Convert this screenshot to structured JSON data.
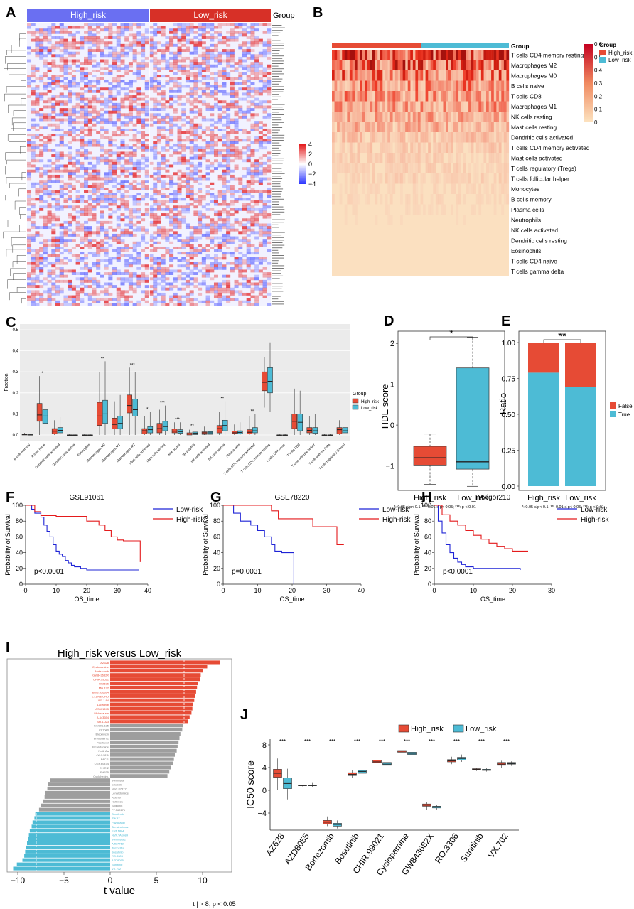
{
  "panel_letters": [
    "A",
    "B",
    "C",
    "D",
    "E",
    "F",
    "G",
    "H",
    "I",
    "J"
  ],
  "colors": {
    "high": "#e64b35",
    "low": "#4dbbd5",
    "km_high": "#e41a1c",
    "km_low": "#1f24d6",
    "heat_blue": "#2b35ff",
    "heat_red": "#e41a1c",
    "grey_bar": "#9e9e9e",
    "hatch_blue": "#6a6ff2",
    "hatch_red": "#e23b2e"
  },
  "panel_a": {
    "group_labels": [
      "High_risk",
      "Low_risk"
    ],
    "group_title": "Group",
    "legend_ticks": [
      "4",
      "2",
      "0",
      "−2",
      "−4"
    ],
    "legend_values": [
      4,
      2,
      0,
      -2,
      -4
    ]
  },
  "panel_b": {
    "group_title": "Group",
    "legend_ticks": [
      "0.6",
      "0.5",
      "0.4",
      "0.3",
      "0.2",
      "0.1",
      "0"
    ],
    "legend_values": [
      0.6,
      0.5,
      0.4,
      0.3,
      0.2,
      0.1,
      0
    ],
    "legend_groups": [
      "High_risk",
      "Low_risk"
    ],
    "rows": [
      "T cells CD4 memory resting",
      "Macrophages M2",
      "Macrophages M0",
      "B cells naive",
      "T cells CD8",
      "Macrophages M1",
      "NK cells resting",
      "Mast cells resting",
      "Dendritic cells activated",
      "T cells CD4 memory activated",
      "Mast cells activated",
      "T cells regulatory (Tregs)",
      "T cells follicular helper",
      "Monocytes",
      "B cells memory",
      "Plasma cells",
      "Neutrophils",
      "NK cells activated",
      "Dendritic cells resting",
      "Eosinophils",
      "T cells CD4 naive",
      "T cells gamma delta"
    ],
    "row_intensity": [
      0.9,
      0.75,
      0.62,
      0.55,
      0.52,
      0.48,
      0.42,
      0.38,
      0.3,
      0.25,
      0.22,
      0.2,
      0.2,
      0.15,
      0.15,
      0.12,
      0.1,
      0.08,
      0.06,
      0.04,
      0.03,
      0.02
    ]
  },
  "chart_data": [
    {
      "panel": "C",
      "type": "box",
      "ylabel": "Fraction",
      "ylim": [
        0,
        0.5
      ],
      "yticks": [
        "0.0",
        "0.1",
        "0.2",
        "0.3",
        "0.4",
        "0.5"
      ],
      "yticks_values": [
        0,
        0.1,
        0.2,
        0.3,
        0.4,
        0.5
      ],
      "legend_title": "Group",
      "legend": [
        "High_risk",
        "Low_risk"
      ],
      "categories": [
        "B cells memory",
        "B cells naive",
        "Dendritic cells activated",
        "Dendritic cells resting",
        "Eosinophils",
        "Macrophages M0",
        "Macrophages M1",
        "Macrophages M2",
        "Mast cells activated",
        "Mast cells resting",
        "Monocytes",
        "Neutrophils",
        "NK cells activated",
        "NK cells resting",
        "Plasma cells",
        "T cells CD4 memory activated",
        "T cells CD4 memory resting",
        "T cells CD4 naive",
        "T cells CD8",
        "T cells follicular helper",
        "T cells gamma delta",
        "T cells regulatory (Tregs)"
      ],
      "signif": [
        "",
        "*",
        "",
        "",
        "",
        "**",
        "",
        "***",
        "*",
        "***",
        "***",
        "**",
        "",
        "**",
        "",
        "**",
        "",
        "",
        "",
        "",
        "",
        ""
      ],
      "high": [
        [
          0,
          0,
          0.002,
          0.005,
          0.01
        ],
        [
          0,
          0.065,
          0.095,
          0.15,
          0.28
        ],
        [
          0,
          0.005,
          0.018,
          0.03,
          0.07
        ],
        [
          0,
          0,
          0,
          0,
          0.005
        ],
        [
          0,
          0,
          0,
          0,
          0.005
        ],
        [
          0,
          0.045,
          0.09,
          0.155,
          0.3
        ],
        [
          0,
          0.028,
          0.05,
          0.08,
          0.16
        ],
        [
          0,
          0.105,
          0.14,
          0.19,
          0.32
        ],
        [
          0,
          0.005,
          0.02,
          0.03,
          0.09
        ],
        [
          0,
          0.01,
          0.03,
          0.055,
          0.12
        ],
        [
          0,
          0.01,
          0.018,
          0.028,
          0.06
        ],
        [
          0,
          0,
          0.005,
          0.01,
          0.025
        ],
        [
          0,
          0.003,
          0.01,
          0.015,
          0.04
        ],
        [
          0,
          0.01,
          0.03,
          0.045,
          0.11
        ],
        [
          0,
          0.005,
          0.01,
          0.018,
          0.05
        ],
        [
          0,
          0.005,
          0.013,
          0.025,
          0.09
        ],
        [
          0.13,
          0.21,
          0.25,
          0.3,
          0.37
        ],
        [
          0,
          0,
          0,
          0,
          0.005
        ],
        [
          0,
          0.03,
          0.065,
          0.1,
          0.22
        ],
        [
          0,
          0.01,
          0.022,
          0.035,
          0.09
        ],
        [
          0,
          0,
          0,
          0,
          0.005
        ],
        [
          0,
          0.005,
          0.025,
          0.035,
          0.07
        ]
      ],
      "low": [
        [
          0,
          0,
          0,
          0.002,
          0.004
        ],
        [
          0,
          0.055,
          0.09,
          0.12,
          0.27
        ],
        [
          0,
          0.01,
          0.022,
          0.035,
          0.085
        ],
        [
          0,
          0,
          0,
          0,
          0.005
        ],
        [
          0,
          0,
          0,
          0,
          0.005
        ],
        [
          0,
          0.055,
          0.1,
          0.165,
          0.35
        ],
        [
          0,
          0.03,
          0.055,
          0.09,
          0.19
        ],
        [
          0,
          0.09,
          0.12,
          0.17,
          0.3
        ],
        [
          0,
          0.01,
          0.025,
          0.04,
          0.11
        ],
        [
          0,
          0.02,
          0.04,
          0.065,
          0.14
        ],
        [
          0,
          0.008,
          0.016,
          0.025,
          0.06
        ],
        [
          0,
          0.002,
          0.008,
          0.014,
          0.03
        ],
        [
          0,
          0.003,
          0.01,
          0.016,
          0.045
        ],
        [
          0,
          0.02,
          0.045,
          0.07,
          0.16
        ],
        [
          0,
          0.006,
          0.012,
          0.02,
          0.06
        ],
        [
          0,
          0.01,
          0.02,
          0.035,
          0.1
        ],
        [
          0.11,
          0.2,
          0.255,
          0.32,
          0.44
        ],
        [
          0,
          0,
          0,
          0,
          0.005
        ],
        [
          0,
          0.02,
          0.06,
          0.1,
          0.21
        ],
        [
          0,
          0.008,
          0.02,
          0.035,
          0.1
        ],
        [
          0,
          0,
          0,
          0,
          0.005
        ],
        [
          0,
          0.01,
          0.02,
          0.035,
          0.08
        ]
      ]
    },
    {
      "panel": "D",
      "type": "box",
      "ylabel": "TIDE score",
      "ylim": [
        -1.6,
        2.3
      ],
      "yticks": [
        "2",
        "1",
        "0",
        "−1"
      ],
      "yticks_values": [
        2,
        1,
        0,
        -1
      ],
      "categories": [
        "High_risk",
        "Low_risk"
      ],
      "boxes": [
        [
          -1.45,
          -0.98,
          -0.8,
          -0.52,
          -0.22
        ],
        [
          -1.5,
          -1.08,
          -0.9,
          1.4,
          2.15
        ]
      ],
      "signif": "*",
      "footnote": "*: 0.05 ≤ p< 0.1;   **: 0.01 ≤ p< 0.05;   ***: p < 0.01"
    },
    {
      "panel": "E",
      "type": "stacked_bar",
      "ylabel": "Ratio",
      "ylim": [
        0,
        1
      ],
      "yticks": [
        "1.00",
        "0.75",
        "0.50",
        "0.25",
        "0.00"
      ],
      "yticks_values": [
        1,
        0.75,
        0.5,
        0.25,
        0
      ],
      "categories": [
        "High_risk",
        "Low_risk"
      ],
      "series": [
        {
          "name": "True",
          "values": [
            0.79,
            0.69
          ]
        },
        {
          "name": "False",
          "values": [
            0.21,
            0.31
          ]
        }
      ],
      "legend": [
        "False",
        "True"
      ],
      "signif": "**",
      "footnote": "*: 0.05 ≤ p< 0.1;   **: 0.01 ≤ p< 0.05;   ***: p < 0.01"
    },
    {
      "panel": "F",
      "type": "line",
      "title": "GSE91061",
      "xlabel": "OS_time",
      "ylabel": "Probability of Survival",
      "xlim": [
        0,
        40
      ],
      "ylim": [
        0,
        100
      ],
      "xticks": [
        "0",
        "10",
        "20",
        "30",
        "40"
      ],
      "xticks_values": [
        0,
        10,
        20,
        30,
        40
      ],
      "yticks": [
        "100",
        "80",
        "60",
        "40",
        "20",
        "0"
      ],
      "yticks_values": [
        100,
        80,
        60,
        40,
        20,
        0
      ],
      "legend": [
        "Low-risk",
        "High-risk"
      ],
      "pvalue": "p<0.0001",
      "series": [
        {
          "name": "Low-risk",
          "x": [
            0,
            2,
            3,
            5,
            6,
            7,
            8,
            9,
            10,
            11,
            12,
            13,
            14,
            15,
            16,
            18,
            20,
            25,
            30,
            35,
            37
          ],
          "y": [
            100,
            95,
            90,
            85,
            75,
            67,
            60,
            50,
            42,
            38,
            35,
            30,
            27,
            24,
            22,
            20,
            18,
            18,
            18,
            18,
            18
          ]
        },
        {
          "name": "High-risk",
          "x": [
            0,
            3,
            5,
            10,
            15,
            20,
            24,
            26,
            28,
            30,
            32,
            35,
            37,
            37.5
          ],
          "y": [
            100,
            92,
            87,
            86,
            86,
            80,
            75,
            68,
            60,
            56,
            55,
            55,
            55,
            28
          ]
        }
      ]
    },
    {
      "panel": "G",
      "type": "line",
      "title": "GSE78220",
      "xlabel": "OS_time",
      "ylabel": "Probability of Survival",
      "xlim": [
        0,
        40
      ],
      "ylim": [
        0,
        100
      ],
      "xticks": [
        "0",
        "10",
        "20",
        "30",
        "40"
      ],
      "xticks_values": [
        0,
        10,
        20,
        30,
        40
      ],
      "yticks": [
        "100",
        "80",
        "60",
        "40",
        "20",
        "0"
      ],
      "yticks_values": [
        100,
        80,
        60,
        40,
        20,
        0
      ],
      "legend": [
        "Low-risk",
        "High-risk"
      ],
      "pvalue": "p=0.0031",
      "series": [
        {
          "name": "Low-risk",
          "x": [
            0,
            3,
            5,
            8,
            10,
            12,
            14,
            15,
            17,
            20,
            20.5
          ],
          "y": [
            100,
            90,
            80,
            75,
            68,
            60,
            50,
            42,
            40,
            40,
            0
          ]
        },
        {
          "name": "High-risk",
          "x": [
            0,
            10,
            14,
            16,
            24,
            26,
            32,
            33,
            35
          ],
          "y": [
            100,
            100,
            93,
            83,
            83,
            73,
            73,
            50,
            50
          ]
        }
      ]
    },
    {
      "panel": "H",
      "type": "line",
      "title": "IMvigor210",
      "xlabel": "OS_time",
      "ylabel": "Probability of Survival",
      "xlim": [
        0,
        30
      ],
      "ylim": [
        0,
        100
      ],
      "xticks": [
        "0",
        "10",
        "20",
        "30"
      ],
      "xticks_values": [
        0,
        10,
        20,
        30
      ],
      "yticks": [
        "100",
        "80",
        "60",
        "40",
        "20",
        "0"
      ],
      "yticks_values": [
        100,
        80,
        60,
        40,
        20,
        0
      ],
      "legend": [
        "Low-risk",
        "High-risk"
      ],
      "pvalue": "p<0.0001",
      "series": [
        {
          "name": "Low-risk",
          "x": [
            0,
            1,
            2,
            3,
            4,
            5,
            6,
            7,
            8,
            10,
            15,
            20,
            22
          ],
          "y": [
            100,
            80,
            65,
            50,
            40,
            33,
            28,
            25,
            22,
            20,
            20,
            20,
            18
          ]
        },
        {
          "name": "High-risk",
          "x": [
            0,
            2,
            4,
            6,
            8,
            10,
            12,
            14,
            16,
            18,
            20,
            22,
            24
          ],
          "y": [
            100,
            88,
            80,
            75,
            68,
            62,
            57,
            52,
            48,
            45,
            42,
            42,
            42
          ]
        }
      ]
    },
    {
      "panel": "I",
      "type": "bar",
      "orientation": "horizontal",
      "title": "High_risk  versus  Low_risk",
      "xlabel": "t value",
      "xlim": [
        -11,
        13
      ],
      "xticks": [
        "−10",
        "−5",
        "0",
        "5",
        "10"
      ],
      "xticks_values": [
        -10,
        -5,
        0,
        5,
        10
      ],
      "threshold": 8,
      "footnote": "| t | > 8; p < 0.05",
      "categories": [
        "AZ628",
        "Cyclopamine",
        "Bortezomib",
        "GW843682X",
        "CHIR.99021",
        "BI.2536",
        "MG.132",
        "BMS.536924",
        "Z.LLNle.CHO",
        "WZ.1.84",
        "Lapatinib",
        "AS601245",
        "Midostaurin",
        "A.443654",
        "SH.4.023",
        "KIN001.135",
        "CI.1040",
        "Bleomycin",
        "Bryostatin.1",
        "Paclitaxel",
        "Bicalutamide",
        "Nutlin3a",
        "JW.7.52.1",
        "PAC.1",
        "CGP.60474",
        "CHIR.2",
        "FH535",
        "Cyclohexim.",
        "Vorinostat",
        "Erlotinib",
        "NSC.87877",
        "Lenalidomide",
        "Axitinib",
        "Nutlin.3a",
        "Shikonin",
        "PF.562271",
        "Sorafenib",
        "TW.37",
        "Pazopanib",
        "Temsirolimus",
        "EHT.1864",
        "NVP.TAE684",
        "Vorinostat2",
        "AZD7762",
        "Tamoxifen",
        "Bosutinib",
        "RO.3306",
        "AZD8055",
        "Sunitinib",
        "VX.702"
      ],
      "values": [
        11.9,
        10.5,
        10.0,
        9.8,
        9.7,
        9.5,
        9.4,
        9.3,
        9.2,
        9.1,
        9.0,
        8.9,
        8.8,
        8.6,
        8.4,
        7.9,
        7.8,
        7.6,
        7.5,
        7.4,
        7.3,
        7.2,
        7.0,
        6.9,
        6.8,
        6.6,
        6.4,
        6.2,
        -6.5,
        -6.7,
        -6.8,
        -7.0,
        -7.1,
        -7.3,
        -7.5,
        -7.7,
        -8.1,
        -8.2,
        -8.4,
        -8.5,
        -8.7,
        -8.8,
        -8.9,
        -9.0,
        -9.1,
        -9.2,
        -9.3,
        -9.5,
        -10.1,
        -10.5
      ]
    },
    {
      "panel": "J",
      "type": "box",
      "ylabel": "IC50 score",
      "ylim": [
        -7,
        9
      ],
      "yticks": [
        "8",
        "4",
        "0",
        "−4"
      ],
      "yticks_values": [
        8,
        4,
        0,
        -4
      ],
      "legend": [
        "High_risk",
        "Low_risk"
      ],
      "categories": [
        "AZ628",
        "AZD8055",
        "Bortezomib",
        "Bosutinib",
        "CHIR.99021",
        "Cyclopamine",
        "GW843682X",
        "RO.3306",
        "Sunitinib",
        "VX.702"
      ],
      "signif": [
        "***",
        "***",
        "***",
        "***",
        "***",
        "***",
        "***",
        "***",
        "***",
        "***"
      ],
      "high": [
        [
          0,
          2.3,
          3.0,
          3.7,
          5.6
        ],
        [
          0.7,
          0.8,
          0.85,
          0.9,
          1.0
        ],
        [
          -6.3,
          -5.9,
          -5.6,
          -5.3,
          -4.6
        ],
        [
          2.2,
          2.6,
          2.8,
          3.1,
          3.6
        ],
        [
          4.3,
          4.8,
          5.0,
          5.3,
          5.8
        ],
        [
          6.4,
          6.7,
          6.9,
          7.0,
          7.3
        ],
        [
          -3.4,
          -2.8,
          -2.6,
          -2.4,
          -2.0
        ],
        [
          4.6,
          5.0,
          5.2,
          5.4,
          5.9
        ],
        [
          3.4,
          3.6,
          3.7,
          3.8,
          4.0
        ],
        [
          4.0,
          4.4,
          4.6,
          4.9,
          5.2
        ]
      ],
      "low": [
        [
          -1.6,
          0.3,
          1.2,
          2.2,
          3.8
        ],
        [
          0.6,
          0.8,
          0.85,
          0.9,
          1.3
        ],
        [
          -6.7,
          -6.3,
          -6.0,
          -5.8,
          -5.3
        ],
        [
          2.7,
          3.0,
          3.3,
          3.5,
          4.3
        ],
        [
          4.0,
          4.4,
          4.6,
          4.9,
          5.3
        ],
        [
          5.9,
          6.3,
          6.5,
          6.7,
          7.0
        ],
        [
          -3.4,
          -3.1,
          -2.9,
          -2.8,
          -2.5
        ],
        [
          5.0,
          5.3,
          5.6,
          5.8,
          6.3
        ],
        [
          3.3,
          3.5,
          3.6,
          3.7,
          3.9
        ],
        [
          4.3,
          4.6,
          4.7,
          4.9,
          5.1
        ]
      ]
    }
  ]
}
